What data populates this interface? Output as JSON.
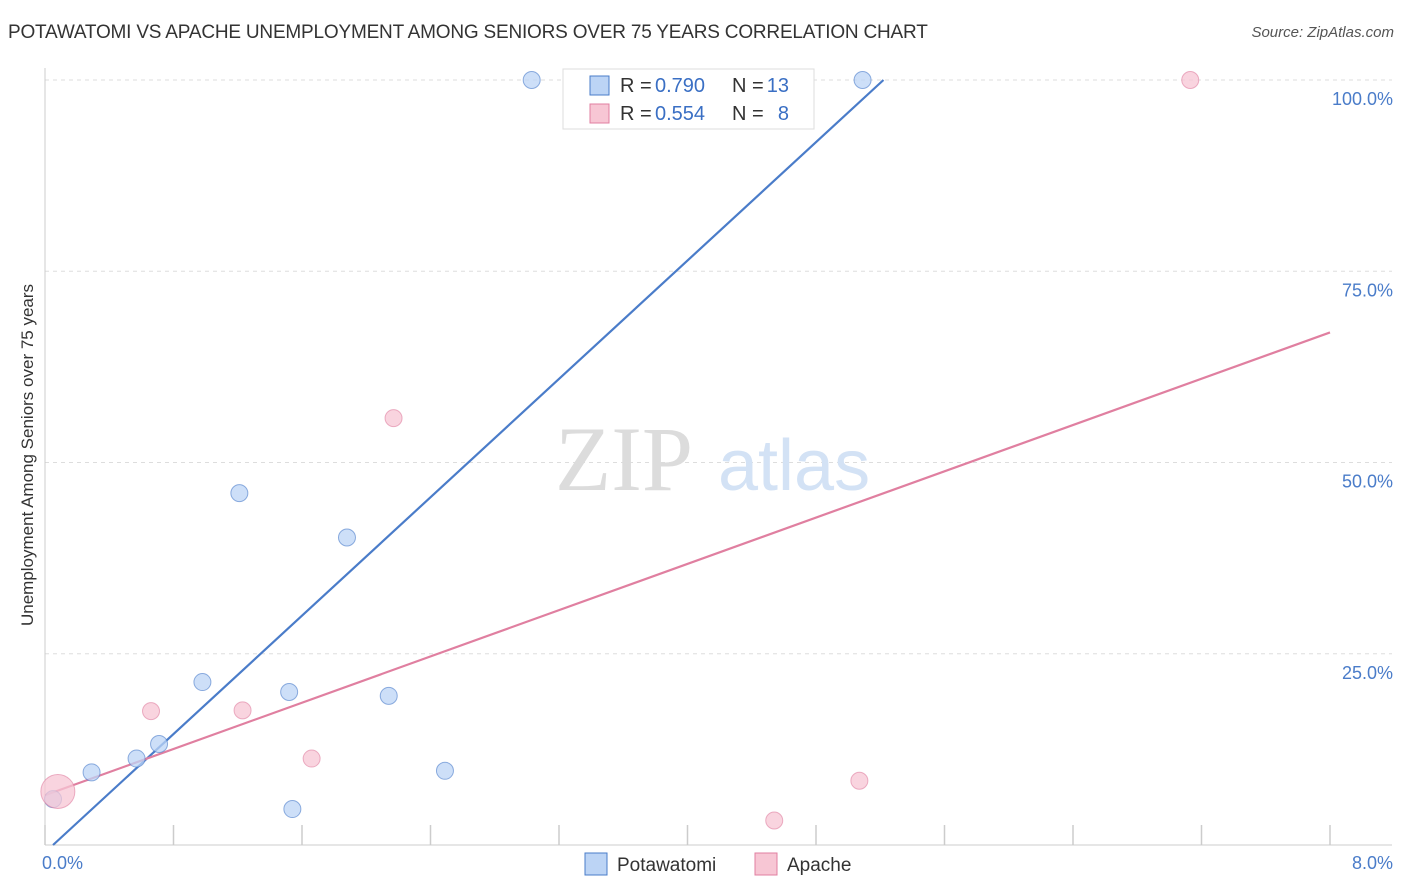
{
  "title": "POTAWATOMI VS APACHE UNEMPLOYMENT AMONG SENIORS OVER 75 YEARS CORRELATION CHART",
  "source": "Source: ZipAtlas.com",
  "watermark": {
    "zip": "ZIP",
    "atlas": "atlas"
  },
  "chart_data": {
    "type": "scatter",
    "xlabel": "",
    "ylabel": "Unemployment Among Seniors over 75 years",
    "xlim": [
      0,
      8
    ],
    "ylim": [
      0,
      100
    ],
    "x_tick_labels": [
      "0.0%",
      "8.0%"
    ],
    "y_ticks": [
      25,
      50,
      75,
      100
    ],
    "y_tick_labels": [
      "25.0%",
      "50.0%",
      "75.0%",
      "100.0%"
    ],
    "grid": true,
    "legend_position": "top-center",
    "series": [
      {
        "name": "Potawatomi",
        "color": "#4a7cc9",
        "fill": "#bcd4f5",
        "r_label": "R =",
        "r_value": "0.790",
        "n_label": "N =",
        "n_value": "13",
        "points": [
          {
            "x": 0.05,
            "y": 6.0
          },
          {
            "x": 0.29,
            "y": 9.5
          },
          {
            "x": 0.57,
            "y": 11.3
          },
          {
            "x": 0.71,
            "y": 13.2
          },
          {
            "x": 0.98,
            "y": 21.3
          },
          {
            "x": 1.21,
            "y": 46.0
          },
          {
            "x": 1.52,
            "y": 20.0
          },
          {
            "x": 1.54,
            "y": 4.7
          },
          {
            "x": 1.88,
            "y": 40.2
          },
          {
            "x": 2.14,
            "y": 19.5
          },
          {
            "x": 2.49,
            "y": 9.7
          },
          {
            "x": 3.03,
            "y": 100.0
          },
          {
            "x": 5.09,
            "y": 100.0
          }
        ],
        "trend": {
          "x0": 0.05,
          "y0": 0.0,
          "x1": 5.22,
          "y1": 100.0
        }
      },
      {
        "name": "Apache",
        "color": "#e07fa0",
        "fill": "#f7c6d4",
        "r_label": "R =",
        "r_value": "0.554",
        "n_label": "N =",
        "n_value": "8",
        "points": [
          {
            "x": 0.08,
            "y": 7.0,
            "big": true
          },
          {
            "x": 0.66,
            "y": 17.5
          },
          {
            "x": 1.23,
            "y": 17.6
          },
          {
            "x": 1.66,
            "y": 11.3
          },
          {
            "x": 2.17,
            "y": 55.8
          },
          {
            "x": 5.07,
            "y": 8.4
          },
          {
            "x": 4.54,
            "y": 3.2
          },
          {
            "x": 7.13,
            "y": 100.0
          }
        ],
        "trend": {
          "x0": 0.0,
          "y0": 6.5,
          "x1": 8.0,
          "y1": 67.0
        }
      }
    ]
  }
}
